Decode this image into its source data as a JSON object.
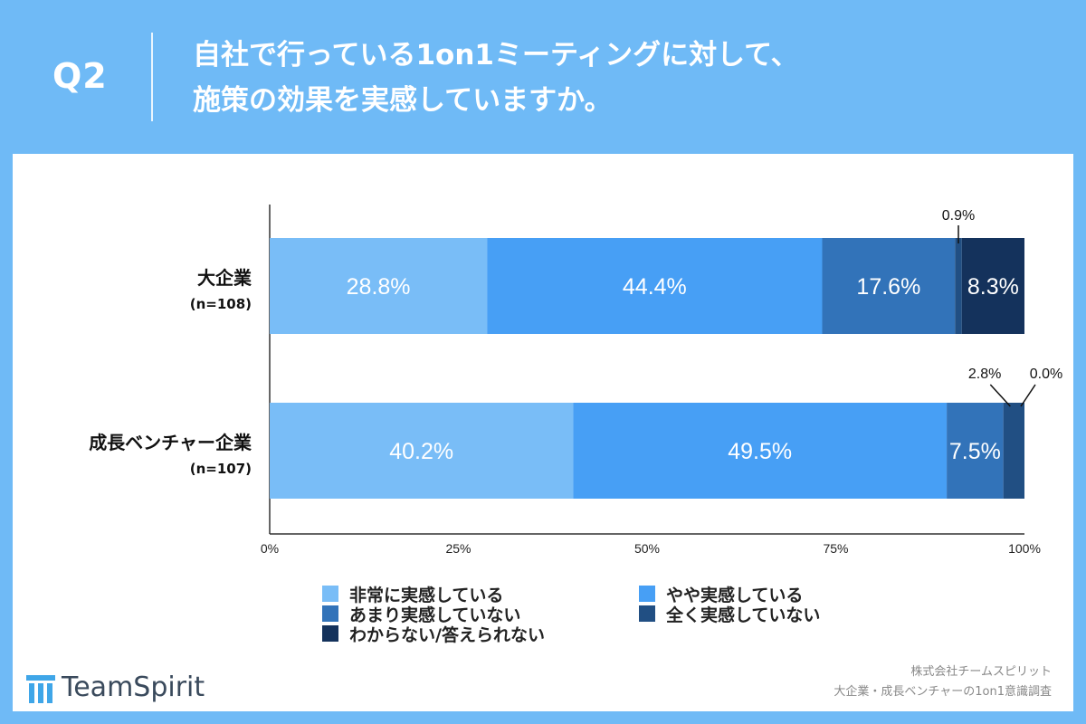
{
  "header": {
    "question_label": "Q2",
    "title_line1": "自社で行っている1on1ミーティングに対して、",
    "title_line2": "施策の効果を実感していますか。"
  },
  "chart_data": {
    "type": "bar",
    "orientation": "horizontal",
    "stacked": true,
    "categories": [
      "大企業",
      "成長ベンチャー企業"
    ],
    "category_sublabels": [
      "(n=108)",
      "(n=107)"
    ],
    "series": [
      {
        "name": "非常に実感している",
        "values": [
          28.8,
          40.2
        ],
        "color": "#79bdf7"
      },
      {
        "name": "やや実感している",
        "values": [
          44.4,
          49.5
        ],
        "color": "#479ff5"
      },
      {
        "name": "あまり実感していない",
        "values": [
          17.6,
          7.5
        ],
        "color": "#3273b9"
      },
      {
        "name": "全く実感していない",
        "values": [
          0.9,
          2.8
        ],
        "color": "#214f83"
      },
      {
        "name": "わからない/答えられない",
        "values": [
          8.3,
          0.0
        ],
        "color": "#14325c"
      }
    ],
    "value_labels": [
      [
        "28.8%",
        "44.4%",
        "17.6%",
        "0.9%",
        "8.3%"
      ],
      [
        "40.2%",
        "49.5%",
        "7.5%",
        "2.8%",
        "0.0%"
      ]
    ],
    "xlim": [
      0,
      100
    ],
    "x_ticks": [
      "0%",
      "25%",
      "50%",
      "75%",
      "100%"
    ],
    "legend_position": "bottom"
  },
  "footer": {
    "company": "株式会社チームスピリット",
    "survey": "大企業・成長ベンチャーの1on1意識調査",
    "brand": "TeamSpirit"
  },
  "colors": {
    "background": "#6fbaf6",
    "panel": "#ffffff"
  },
  "icons": {
    "brand": "teamspirit-logo-icon"
  }
}
